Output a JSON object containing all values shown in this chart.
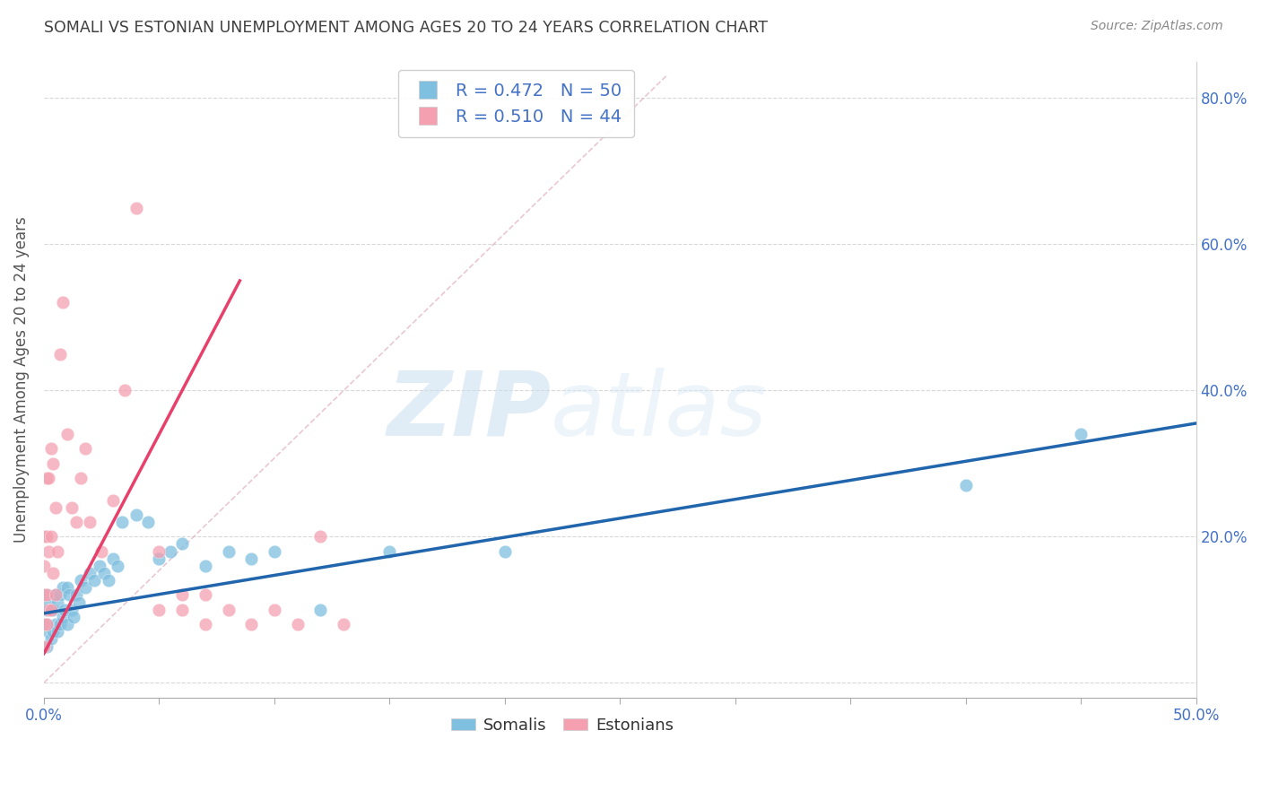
{
  "title": "SOMALI VS ESTONIAN UNEMPLOYMENT AMONG AGES 20 TO 24 YEARS CORRELATION CHART",
  "source": "Source: ZipAtlas.com",
  "ylabel": "Unemployment Among Ages 20 to 24 years",
  "xlim": [
    0.0,
    0.5
  ],
  "ylim": [
    -0.02,
    0.85
  ],
  "somali_R": 0.472,
  "somali_N": 50,
  "estonian_R": 0.51,
  "estonian_N": 44,
  "somali_color": "#7fbfdf",
  "estonian_color": "#f4a0b0",
  "somali_line_color": "#2166ac",
  "estonian_line_color": "#e8406a",
  "ref_line_color": "#e0b0c0",
  "legend_label_somali": "Somalis",
  "legend_label_estonian": "Estonians",
  "watermark_zip": "ZIP",
  "watermark_atlas": "atlas",
  "background_color": "#ffffff",
  "grid_color": "#d8d8d8",
  "tick_color": "#4472c4",
  "title_color": "#404040",
  "somali_x": [
    0.001,
    0.001,
    0.001,
    0.001,
    0.002,
    0.002,
    0.003,
    0.003,
    0.004,
    0.004,
    0.005,
    0.005,
    0.006,
    0.006,
    0.007,
    0.007,
    0.008,
    0.008,
    0.009,
    0.01,
    0.01,
    0.011,
    0.012,
    0.013,
    0.014,
    0.015,
    0.016,
    0.018,
    0.02,
    0.022,
    0.024,
    0.026,
    0.028,
    0.03,
    0.032,
    0.034,
    0.04,
    0.045,
    0.05,
    0.055,
    0.06,
    0.07,
    0.08,
    0.09,
    0.1,
    0.12,
    0.15,
    0.2,
    0.4,
    0.45
  ],
  "somali_y": [
    0.05,
    0.08,
    0.1,
    0.12,
    0.07,
    0.11,
    0.06,
    0.1,
    0.07,
    0.1,
    0.08,
    0.12,
    0.07,
    0.11,
    0.08,
    0.12,
    0.09,
    0.13,
    0.1,
    0.08,
    0.13,
    0.12,
    0.1,
    0.09,
    0.12,
    0.11,
    0.14,
    0.13,
    0.15,
    0.14,
    0.16,
    0.15,
    0.14,
    0.17,
    0.16,
    0.22,
    0.23,
    0.22,
    0.17,
    0.18,
    0.19,
    0.16,
    0.18,
    0.17,
    0.18,
    0.1,
    0.18,
    0.18,
    0.27,
    0.34
  ],
  "estonian_x": [
    0.0,
    0.0,
    0.0,
    0.0,
    0.0,
    0.001,
    0.001,
    0.001,
    0.001,
    0.002,
    0.002,
    0.002,
    0.003,
    0.003,
    0.003,
    0.004,
    0.004,
    0.005,
    0.005,
    0.006,
    0.007,
    0.008,
    0.01,
    0.012,
    0.014,
    0.016,
    0.018,
    0.02,
    0.025,
    0.03,
    0.035,
    0.04,
    0.05,
    0.06,
    0.07,
    0.08,
    0.09,
    0.1,
    0.11,
    0.12,
    0.13,
    0.05,
    0.06,
    0.07
  ],
  "estonian_y": [
    0.05,
    0.08,
    0.12,
    0.16,
    0.2,
    0.08,
    0.12,
    0.2,
    0.28,
    0.1,
    0.18,
    0.28,
    0.1,
    0.2,
    0.32,
    0.15,
    0.3,
    0.12,
    0.24,
    0.18,
    0.45,
    0.52,
    0.34,
    0.24,
    0.22,
    0.28,
    0.32,
    0.22,
    0.18,
    0.25,
    0.4,
    0.65,
    0.18,
    0.12,
    0.12,
    0.1,
    0.08,
    0.1,
    0.08,
    0.2,
    0.08,
    0.1,
    0.1,
    0.08
  ],
  "somali_line_x0": 0.0,
  "somali_line_x1": 0.5,
  "somali_line_y0": 0.095,
  "somali_line_y1": 0.355,
  "estonian_line_x0": 0.0,
  "estonian_line_x1": 0.085,
  "estonian_line_y0": 0.04,
  "estonian_line_y1": 0.55,
  "ref_line_x0": 0.0,
  "ref_line_x1": 0.27,
  "ref_line_y0": 0.0,
  "ref_line_y1": 0.83
}
